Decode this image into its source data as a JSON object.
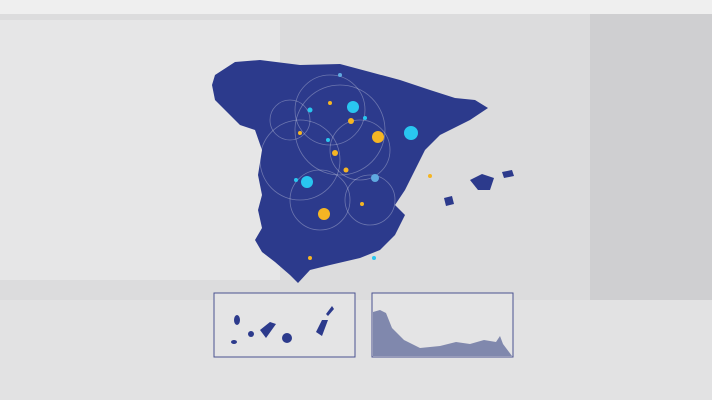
{
  "map": {
    "region": "Spain",
    "land_color": "#2c3a8c",
    "inset_land_color": "#8088ad",
    "background_color": "#dcdcdd",
    "marker_colors": {
      "cyan": "#29c6f0",
      "yellow": "#f5b523",
      "light-blue": "#5fa9e0"
    },
    "insets": [
      "canary-islands",
      "ceuta-melilla-coast"
    ]
  }
}
